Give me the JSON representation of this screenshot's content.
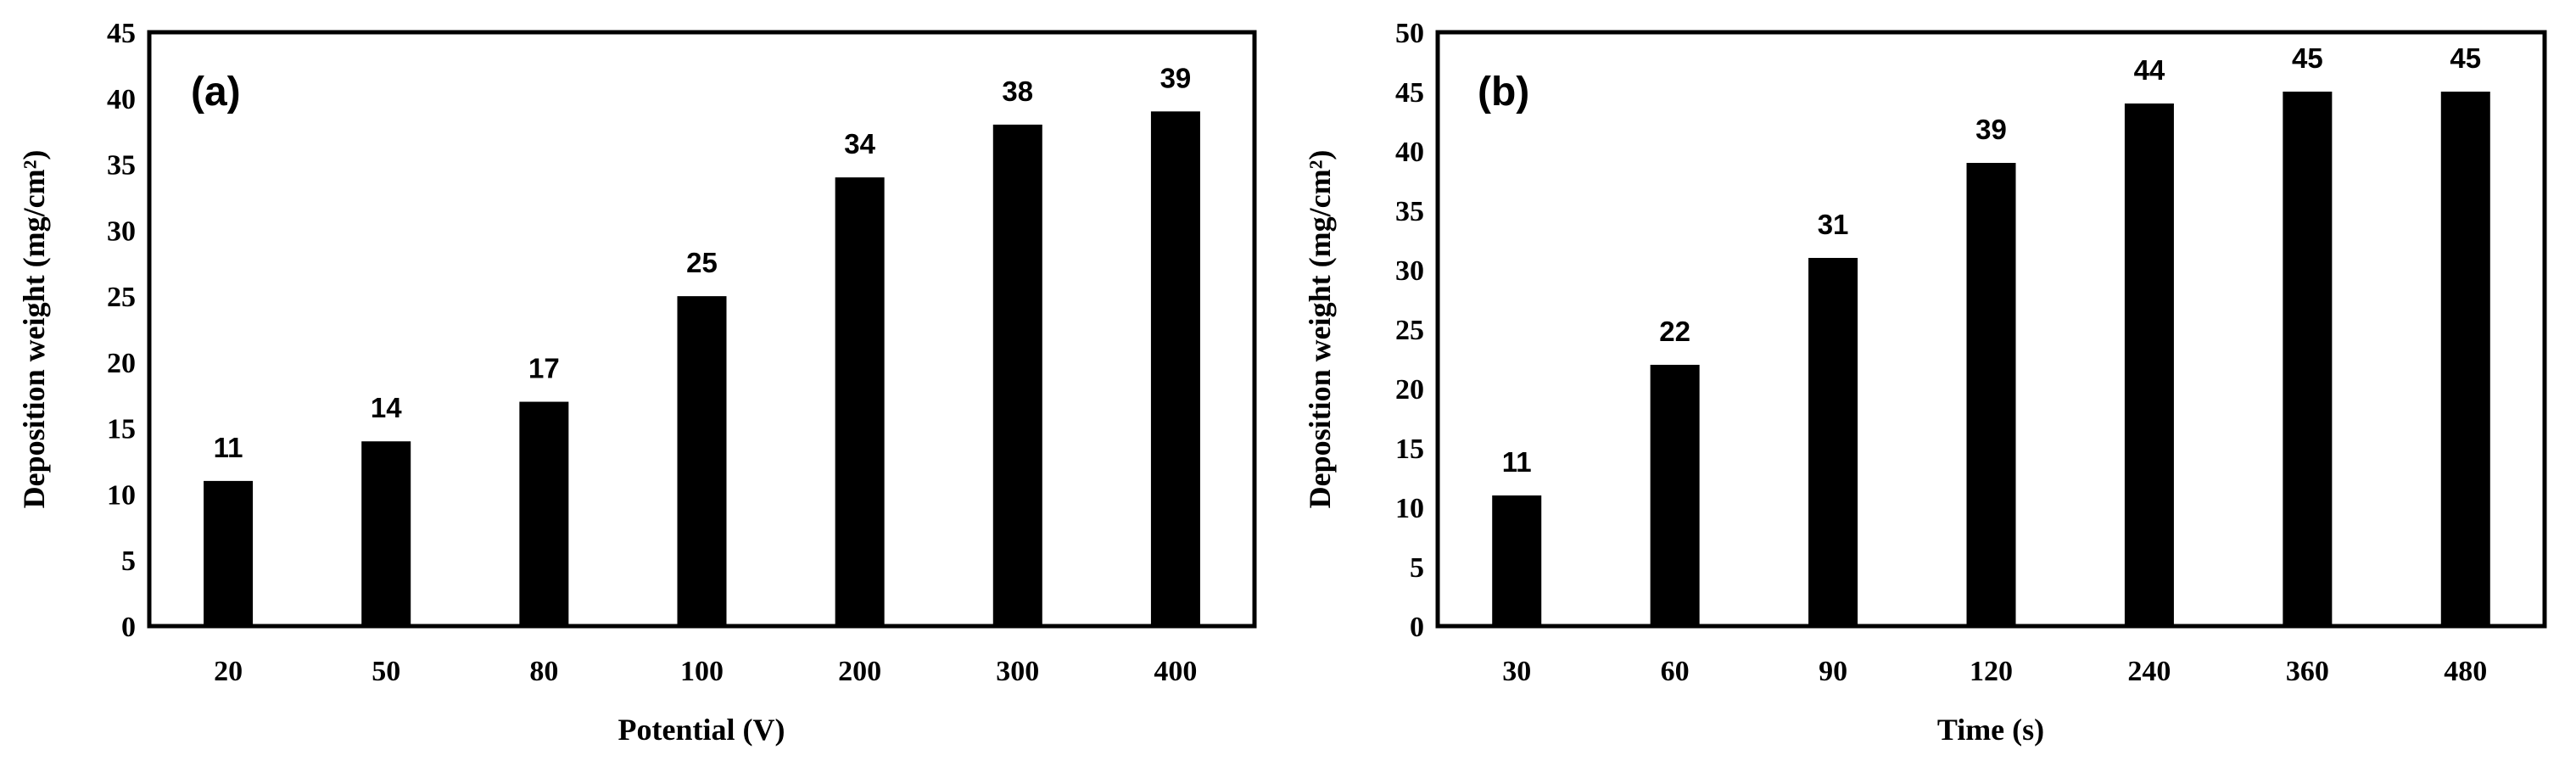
{
  "chart_data": [
    {
      "type": "bar",
      "panel_label": "(a)",
      "categories": [
        "20",
        "50",
        "80",
        "100",
        "200",
        "300",
        "400"
      ],
      "values": [
        11,
        14,
        17,
        25,
        34,
        38,
        39
      ],
      "data_labels": [
        "11",
        "14",
        "17",
        "25",
        "34",
        "38",
        "39"
      ],
      "xlabel": "Potential (V)",
      "ylabel": "Deposition weight (mg/cm²)",
      "ylim": [
        0,
        45
      ],
      "yticks": [
        0,
        5,
        10,
        15,
        20,
        25,
        30,
        35,
        40,
        45
      ],
      "grid": false,
      "bar_color": "#000000"
    },
    {
      "type": "bar",
      "panel_label": "(b)",
      "categories": [
        "30",
        "60",
        "90",
        "120",
        "240",
        "360",
        "480"
      ],
      "values": [
        11,
        22,
        31,
        39,
        44,
        45,
        45
      ],
      "data_labels": [
        "11",
        "22",
        "31",
        "39",
        "44",
        "45",
        "45"
      ],
      "xlabel": "Time (s)",
      "ylabel": "Deposition weight (mg/cm²)",
      "ylim": [
        0,
        50
      ],
      "yticks": [
        0,
        5,
        10,
        15,
        20,
        25,
        30,
        35,
        40,
        45,
        50
      ],
      "grid": false,
      "bar_color": "#000000"
    }
  ]
}
